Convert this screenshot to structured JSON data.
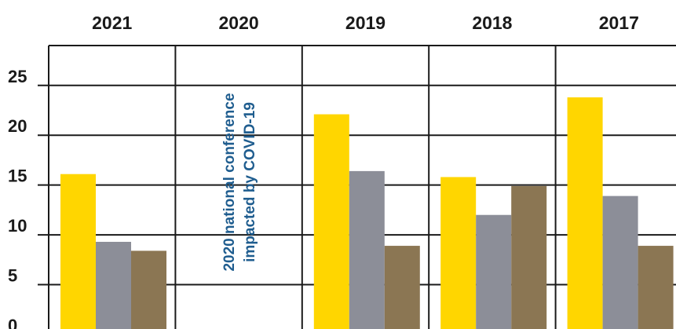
{
  "chart_data": {
    "type": "bar",
    "categories": [
      "2021",
      "2020",
      "2019",
      "2018",
      "2017"
    ],
    "series": [
      {
        "values": [
          16.1,
          null,
          22.1,
          15.8,
          23.8
        ],
        "color": "#ffd600"
      },
      {
        "values": [
          9.3,
          null,
          16.4,
          12.0,
          13.9
        ],
        "color": "#8c8e98"
      },
      {
        "values": [
          8.4,
          null,
          8.9,
          14.9,
          8.9
        ],
        "color": "#8b7653"
      }
    ],
    "y_ticks": [
      "0",
      "5",
      "10",
      "15",
      "20",
      "25"
    ],
    "ylim": [
      0,
      29
    ],
    "annotation": {
      "category": "2020",
      "lines": [
        "2020 national conference",
        "impacted by COVID-19"
      ]
    },
    "grid": true
  }
}
